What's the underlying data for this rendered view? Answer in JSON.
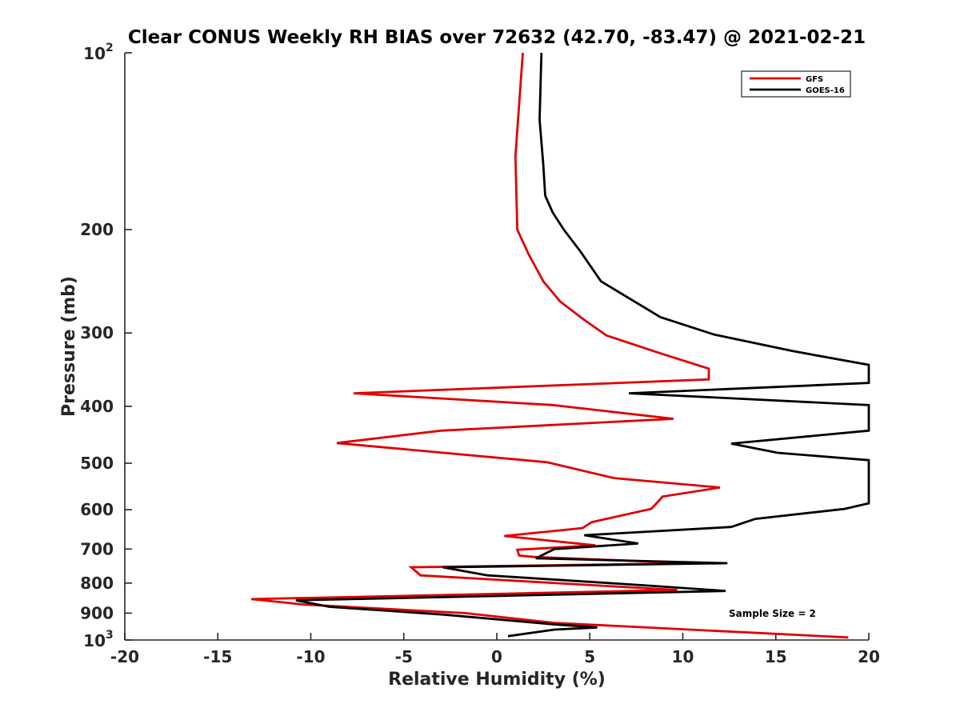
{
  "chart_data": {
    "type": "line",
    "title": "Clear CONUS Weekly RH BIAS over 72632 (42.70, -83.47) @ 2021-02-21",
    "xlabel": "Relative Humidity (%)",
    "ylabel": "Pressure (mb)",
    "xlim": [
      -20,
      20
    ],
    "ylim": [
      100,
      1000
    ],
    "y_scale": "log",
    "y_reversed": true,
    "x_ticks": [
      "-20",
      "-15",
      "-10",
      "-5",
      "0",
      "5",
      "10",
      "15",
      "20"
    ],
    "y_ticks": [
      {
        "value": 100,
        "label": "10",
        "sup": "2"
      },
      {
        "value": 200,
        "label": "200"
      },
      {
        "value": 300,
        "label": "300"
      },
      {
        "value": 400,
        "label": "400"
      },
      {
        "value": 500,
        "label": "500"
      },
      {
        "value": 600,
        "label": "600"
      },
      {
        "value": 700,
        "label": "700"
      },
      {
        "value": 800,
        "label": "800"
      },
      {
        "value": 900,
        "label": "900"
      },
      {
        "value": 1000,
        "label": "10",
        "sup": "3"
      }
    ],
    "grid": false,
    "legend_position": "top-right",
    "annotation": "Sample Size = 2",
    "series": [
      {
        "name": "GFS",
        "color": "#e00000",
        "points": [
          [
            1.4,
            100
          ],
          [
            1.0,
            150
          ],
          [
            1.1,
            200
          ],
          [
            1.7,
            220
          ],
          [
            2.5,
            245
          ],
          [
            3.4,
            265
          ],
          [
            4.7,
            285
          ],
          [
            5.9,
            303
          ],
          [
            8.8,
            325
          ],
          [
            11.4,
            345
          ],
          [
            11.4,
            360
          ],
          [
            -7.7,
            380
          ],
          [
            3.0,
            398
          ],
          [
            9.5,
            420
          ],
          [
            -3.0,
            440
          ],
          [
            -8.6,
            462
          ],
          [
            2.7,
            498
          ],
          [
            6.3,
            530
          ],
          [
            12.0,
            550
          ],
          [
            8.9,
            570
          ],
          [
            8.7,
            580
          ],
          [
            8.3,
            598
          ],
          [
            5.1,
            630
          ],
          [
            4.6,
            645
          ],
          [
            0.4,
            665
          ],
          [
            5.3,
            690
          ],
          [
            1.1,
            702
          ],
          [
            1.2,
            718
          ],
          [
            2.0,
            722
          ],
          [
            10.5,
            740
          ],
          [
            -4.6,
            752
          ],
          [
            -4.1,
            776
          ],
          [
            9.7,
            822
          ],
          [
            -13.2,
            852
          ],
          [
            -10.4,
            870
          ],
          [
            -1.7,
            900
          ],
          [
            3.1,
            935
          ],
          [
            18.9,
            990
          ]
        ]
      },
      {
        "name": "GOES-16",
        "color": "#000000",
        "points": [
          [
            2.4,
            100
          ],
          [
            2.3,
            130
          ],
          [
            2.5,
            155
          ],
          [
            2.6,
            175
          ],
          [
            3.0,
            187
          ],
          [
            3.6,
            200
          ],
          [
            4.5,
            218
          ],
          [
            5.6,
            245
          ],
          [
            8.8,
            282
          ],
          [
            11.7,
            302
          ],
          [
            15.9,
            322
          ],
          [
            20.0,
            340
          ],
          [
            20.0,
            365
          ],
          [
            7.1,
            380
          ],
          [
            20.0,
            398
          ],
          [
            20.0,
            440
          ],
          [
            12.6,
            463
          ],
          [
            15.1,
            480
          ],
          [
            20.0,
            494
          ],
          [
            20.0,
            585
          ],
          [
            18.7,
            598
          ],
          [
            13.9,
            622
          ],
          [
            12.6,
            642
          ],
          [
            4.7,
            663
          ],
          [
            7.6,
            685
          ],
          [
            3.1,
            700
          ],
          [
            2.1,
            726
          ],
          [
            12.4,
            740
          ],
          [
            -2.9,
            752
          ],
          [
            -0.5,
            776
          ],
          [
            7.9,
            807
          ],
          [
            12.3,
            825
          ],
          [
            -10.8,
            856
          ],
          [
            -9.0,
            878
          ],
          [
            -2.9,
            905
          ],
          [
            3.0,
            940
          ],
          [
            5.4,
            952
          ],
          [
            3.1,
            960
          ],
          [
            0.6,
            985
          ]
        ]
      }
    ]
  }
}
